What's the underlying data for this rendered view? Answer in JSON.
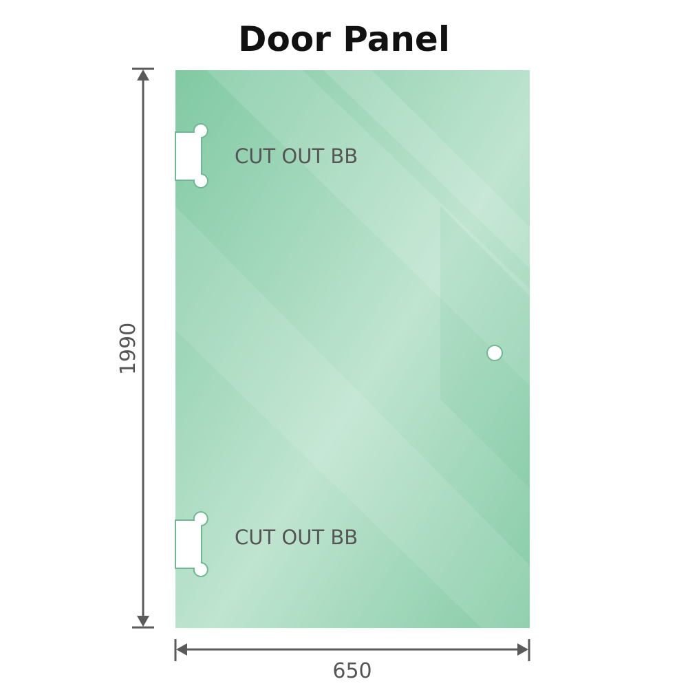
{
  "title": "Door Panel",
  "dimensions": {
    "height": "1990",
    "width": "650"
  },
  "cutouts": [
    {
      "label": "CUT OUT BB"
    },
    {
      "label": "CUT OUT BB"
    }
  ],
  "colors": {
    "glass": "#86cda8",
    "glass_light": "#b8e2cc",
    "dimension_line": "#5a5a5a"
  }
}
